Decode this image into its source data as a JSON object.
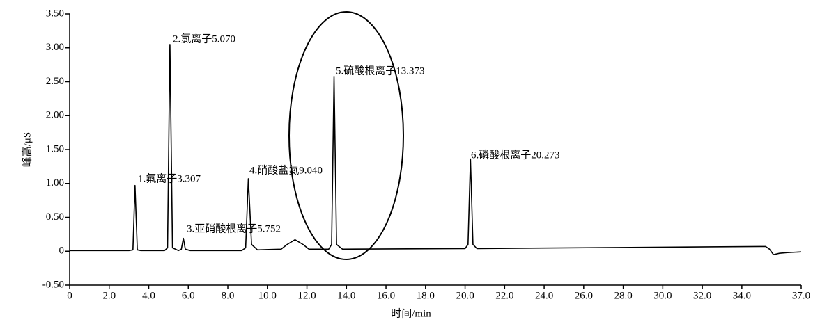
{
  "chart_data": {
    "type": "line",
    "xlabel": "时间/min",
    "ylabel": "峰高/μS",
    "x": [
      0,
      3.0,
      3.2,
      3.307,
      3.42,
      3.6,
      4.8,
      4.95,
      5.07,
      5.2,
      5.5,
      5.65,
      5.752,
      5.85,
      6.1,
      8.7,
      8.9,
      9.04,
      9.2,
      9.5,
      10.7,
      11.0,
      11.4,
      11.8,
      12.1,
      13.1,
      13.25,
      13.373,
      13.5,
      13.8,
      20.0,
      20.15,
      20.273,
      20.4,
      20.6,
      34.9,
      35.2,
      35.4,
      35.6,
      35.9,
      36.3,
      37.0
    ],
    "values": [
      0.01,
      0.01,
      0.02,
      0.97,
      0.02,
      0.01,
      0.01,
      0.05,
      3.05,
      0.05,
      0.01,
      0.03,
      0.19,
      0.03,
      0.01,
      0.01,
      0.05,
      1.07,
      0.1,
      0.02,
      0.03,
      0.1,
      0.17,
      0.1,
      0.03,
      0.03,
      0.1,
      2.58,
      0.1,
      0.03,
      0.04,
      0.1,
      1.36,
      0.1,
      0.04,
      0.07,
      0.07,
      0.03,
      -0.05,
      -0.03,
      -0.02,
      -0.01
    ],
    "color": "#000000",
    "xlim": [
      0,
      37
    ],
    "xticks": [
      0,
      {
        "value": 2,
        "label": "2.0"
      },
      {
        "value": 4,
        "label": "4.0"
      },
      {
        "value": 6,
        "label": "6.0"
      },
      {
        "value": 8,
        "label": "8.0"
      },
      {
        "value": 10,
        "label": "10.0"
      },
      {
        "value": 12,
        "label": "12.0"
      },
      {
        "value": 14,
        "label": "14.0"
      },
      {
        "value": 16,
        "label": "16.0"
      },
      {
        "value": 18,
        "label": "18.0"
      },
      {
        "value": 20,
        "label": "20.0"
      },
      {
        "value": 22,
        "label": "22.0"
      },
      {
        "value": 24,
        "label": "24.0"
      },
      {
        "value": 26,
        "label": "26.0"
      },
      {
        "value": 28,
        "label": "28.0"
      },
      {
        "value": 30,
        "label": "30.0"
      },
      {
        "value": 32,
        "label": "32.0"
      },
      {
        "value": 34,
        "label": "34.0"
      },
      {
        "value": 37,
        "label": "37.0"
      }
    ],
    "ylim": [
      -0.5,
      3.5
    ],
    "yticks": [
      {
        "value": -0.5,
        "label": "-0.50"
      },
      0,
      {
        "value": 0.5,
        "label": "0.50"
      },
      {
        "value": 1,
        "label": "1.00"
      },
      {
        "value": 1.5,
        "label": "1.50"
      },
      {
        "value": 2,
        "label": "2.00"
      },
      {
        "value": 2.5,
        "label": "2.50"
      },
      {
        "value": 3,
        "label": "3.00"
      },
      {
        "value": 3.5,
        "label": "3.50"
      }
    ],
    "annotations": [
      "1.氟离子3.307",
      "2.氯离子5.070",
      "3.亚硝酸根离子5.752",
      "4.硝酸盐氮9.040",
      "5.硫酸根离子13.373",
      "6.磷酸根离子20.273"
    ]
  }
}
